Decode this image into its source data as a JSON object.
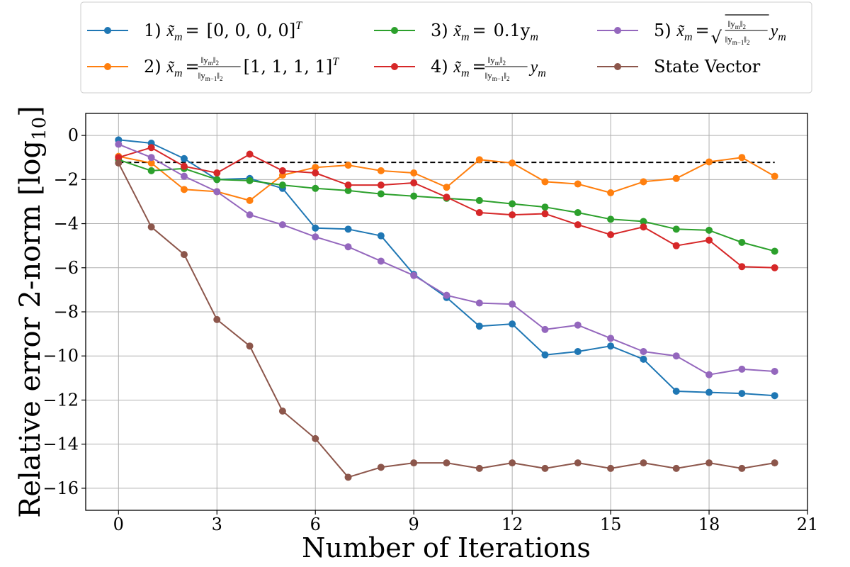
{
  "chart_data": {
    "type": "line",
    "title": "",
    "xlabel": "Number of Iterations",
    "ylabel": "Relative error 2-norm [log",
    "ylabel_subscript": "10",
    "ylabel_suffix": "]",
    "xlim": [
      -1,
      21
    ],
    "ylim": [
      -17,
      1
    ],
    "xticks": [
      0,
      3,
      6,
      9,
      12,
      15,
      18,
      21
    ],
    "yticks": [
      0,
      -2,
      -4,
      -6,
      -8,
      -10,
      -12,
      -14,
      -16
    ],
    "ytick_labels": [
      "0",
      "−2",
      "−4",
      "−6",
      "−8",
      "−10",
      "−12",
      "−14",
      "−16"
    ],
    "grid": true,
    "reference_line": {
      "y": -1.22,
      "x_range": [
        0,
        20
      ],
      "style": "dashed",
      "color": "#000000"
    },
    "x": [
      0,
      1,
      2,
      3,
      4,
      5,
      6,
      7,
      8,
      9,
      10,
      11,
      12,
      13,
      14,
      15,
      16,
      17,
      18,
      19,
      20
    ],
    "series": [
      {
        "name": "1) x̃m = [0, 0, 0, 0]T",
        "color": "#1f77b4",
        "values": [
          -0.2,
          -0.35,
          -1.05,
          -2.0,
          -1.95,
          -2.4,
          -4.2,
          -4.25,
          -4.55,
          -6.3,
          -7.35,
          -8.65,
          -8.55,
          -9.95,
          -9.8,
          -9.55,
          -10.15,
          -11.6,
          -11.65,
          -11.7,
          -11.8
        ]
      },
      {
        "name": "2) x̃m = ||ym||2/||ym−1||2 [1, 1, 1, 1]T",
        "color": "#ff7f0e",
        "values": [
          -0.95,
          -1.25,
          -2.45,
          -2.55,
          -2.95,
          -1.8,
          -1.45,
          -1.35,
          -1.6,
          -1.7,
          -2.35,
          -1.1,
          -1.25,
          -2.1,
          -2.2,
          -2.6,
          -2.1,
          -1.95,
          -1.2,
          -1.0,
          -1.85
        ]
      },
      {
        "name": "3) x̃m = 0.1ym",
        "color": "#2ca02c",
        "values": [
          -1.1,
          -1.6,
          -1.5,
          -2.0,
          -2.05,
          -2.25,
          -2.4,
          -2.5,
          -2.65,
          -2.75,
          -2.85,
          -2.95,
          -3.1,
          -3.25,
          -3.5,
          -3.8,
          -3.9,
          -4.25,
          -4.3,
          -4.85,
          -5.25
        ]
      },
      {
        "name": "4) x̃m = ||ym||2/||ym−1||2 ym",
        "color": "#d62728",
        "values": [
          -1.0,
          -0.55,
          -1.4,
          -1.7,
          -0.85,
          -1.6,
          -1.7,
          -2.25,
          -2.25,
          -2.15,
          -2.8,
          -3.5,
          -3.6,
          -3.55,
          -4.05,
          -4.5,
          -4.15,
          -5.0,
          -4.75,
          -5.95,
          -6.0
        ]
      },
      {
        "name": "5) x̃m = √(||ym||2/||ym−1||2) ym",
        "color": "#9467bd",
        "values": [
          -0.4,
          -1.0,
          -1.85,
          -2.55,
          -3.6,
          -4.05,
          -4.6,
          -5.05,
          -5.7,
          -6.35,
          -7.25,
          -7.6,
          -7.65,
          -8.8,
          -8.6,
          -9.2,
          -9.8,
          -10.0,
          -10.85,
          -10.6,
          -10.7
        ]
      },
      {
        "name": "State Vector",
        "color": "#8c564b",
        "values": [
          -1.25,
          -4.15,
          -5.4,
          -8.35,
          -9.55,
          -12.5,
          -13.75,
          -15.5,
          -15.05,
          -14.85,
          -14.85,
          -15.1,
          -14.85,
          -15.1,
          -14.85,
          -15.1,
          -14.85,
          -15.1,
          -14.85,
          -15.1,
          -14.85
        ]
      }
    ],
    "legend": {
      "placement": "top",
      "entries": [
        {
          "num": "1)",
          "lhs": "x̃",
          "sub": "m",
          "eq": "=",
          "rhs": "[0, 0, 0, 0]",
          "sup": "T"
        },
        {
          "num": "2)",
          "lhs": "x̃",
          "sub": "m",
          "eq": "=",
          "frac_num": "‖y",
          "frac_num_sub": "m",
          "frac_num_tail": "‖",
          "frac_num_tail_sub": "2",
          "frac_den": "‖y",
          "frac_den_sub": "m−1",
          "frac_den_tail": "‖",
          "frac_den_tail_sub": "2",
          "rhs": "[1, 1, 1, 1]",
          "sup": "T"
        },
        {
          "num": "3)",
          "lhs": "x̃",
          "sub": "m",
          "eq": "=",
          "rhs": "0.1y",
          "rhs_sub": "m"
        },
        {
          "num": "4)",
          "lhs": "x̃",
          "sub": "m",
          "eq": "=",
          "frac_num": "‖y",
          "frac_num_sub": "m",
          "frac_num_tail": "‖",
          "frac_num_tail_sub": "2",
          "frac_den": "‖y",
          "frac_den_sub": "m−1",
          "frac_den_tail": "‖",
          "frac_den_tail_sub": "2",
          "rhs": "y",
          "rhs_sub": "m"
        },
        {
          "num": "5)",
          "lhs": "x̃",
          "sub": "m",
          "eq": "=",
          "sqrt": "√",
          "frac_num": "‖y",
          "frac_num_sub": "m",
          "frac_num_tail": "‖",
          "frac_num_tail_sub": "2",
          "frac_den": "‖y",
          "frac_den_sub": "m−1",
          "frac_den_tail": "‖",
          "frac_den_tail_sub": "2",
          "rhs": "y",
          "rhs_sub": "m"
        },
        {
          "plain": "State Vector"
        }
      ]
    }
  }
}
